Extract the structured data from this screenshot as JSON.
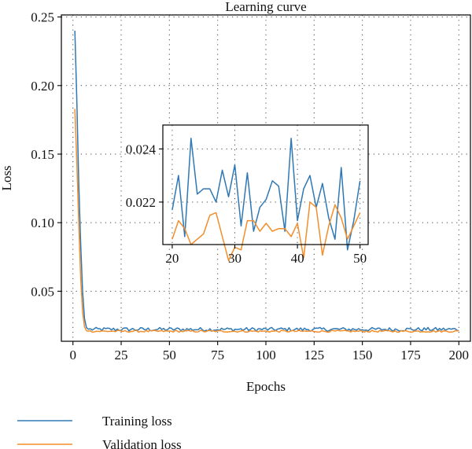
{
  "chart_data": [
    {
      "type": "line",
      "title": "Learning curve",
      "xlabel": "Epochs",
      "ylabel": "Loss",
      "xlim": [
        -6,
        206
      ],
      "ylim": [
        0.0135,
        0.2515
      ],
      "xticks": [
        0,
        25,
        50,
        75,
        100,
        125,
        150,
        175,
        200
      ],
      "yticks": [
        0.05,
        0.1,
        0.15,
        0.2,
        0.25
      ],
      "ytick_labels": [
        "0.05",
        "0.10",
        "0.15",
        "0.20",
        "0.25"
      ],
      "grid": true,
      "legend_position": "below plot, left",
      "series": [
        {
          "name": "Training loss",
          "color": "#2e78b5",
          "x": [
            1,
            2,
            3,
            4,
            5,
            6,
            7,
            8
          ],
          "y": [
            0.24,
            0.19,
            0.13,
            0.085,
            0.05,
            0.03,
            0.0235,
            0.0223
          ],
          "tail_from": 9,
          "tail_to": 200,
          "tail_level": 0.0222,
          "tail_jitter": 0.0014
        },
        {
          "name": "Validation loss",
          "color": "#f28e2b",
          "x": [
            1,
            2,
            3,
            4,
            5,
            6,
            7,
            8
          ],
          "y": [
            0.183,
            0.145,
            0.1,
            0.06,
            0.035,
            0.024,
            0.0212,
            0.0209
          ],
          "tail_from": 9,
          "tail_to": 200,
          "tail_level": 0.0208,
          "tail_jitter": 0.0007
        }
      ]
    },
    {
      "type": "line",
      "title": "",
      "xlim": [
        18.5,
        51.3
      ],
      "ylim": [
        0.0204,
        0.0249
      ],
      "xticks": [
        20,
        30,
        40,
        50
      ],
      "yticks": [
        0.022,
        0.024
      ],
      "ytick_labels": [
        "0.022",
        "0.024"
      ],
      "grid": true,
      "series": [
        {
          "name": "Training loss",
          "color": "#2e78b5",
          "x": [
            20,
            21,
            22,
            23,
            24,
            25,
            26,
            27,
            28,
            29,
            30,
            31,
            32,
            33,
            34,
            35,
            36,
            37,
            38,
            39,
            40,
            41,
            42,
            43,
            44,
            45,
            46,
            47,
            48,
            49,
            50
          ],
          "y": [
            0.0217,
            0.023,
            0.0207,
            0.0244,
            0.0223,
            0.0225,
            0.0225,
            0.022,
            0.0232,
            0.0222,
            0.0234,
            0.0211,
            0.0231,
            0.0209,
            0.0218,
            0.0221,
            0.0228,
            0.0226,
            0.0209,
            0.0244,
            0.0213,
            0.0225,
            0.023,
            0.0218,
            0.0227,
            0.0214,
            0.0206,
            0.0233,
            0.0202,
            0.0213,
            0.0228
          ]
        },
        {
          "name": "Validation loss",
          "color": "#f28e2b",
          "x": [
            20,
            21,
            22,
            23,
            24,
            25,
            26,
            27,
            28,
            29,
            30,
            31,
            32,
            33,
            34,
            35,
            36,
            37,
            38,
            39,
            40,
            41,
            42,
            43,
            44,
            45,
            46,
            47,
            48,
            49,
            50
          ],
          "y": [
            0.0206,
            0.0213,
            0.021,
            0.0204,
            0.0206,
            0.0208,
            0.0215,
            0.0216,
            0.0207,
            0.0198,
            0.0203,
            0.0202,
            0.0213,
            0.0213,
            0.0209,
            0.0212,
            0.0209,
            0.021,
            0.021,
            0.0207,
            0.0212,
            0.0199,
            0.022,
            0.0218,
            0.02,
            0.0211,
            0.0219,
            0.0214,
            0.0206,
            0.0211,
            0.0216
          ]
        }
      ]
    }
  ]
}
